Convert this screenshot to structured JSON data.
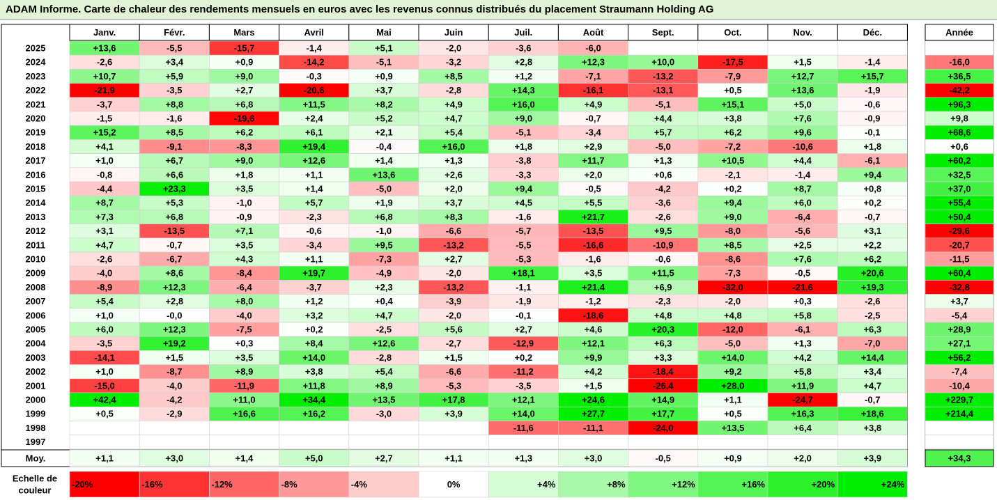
{
  "title": "ADAM Informe. Carte de chaleur des rendements mensuels en euros avec les revenus connus distribués du placement Straumann Holding AG",
  "chart_data": {
    "type": "heatmap",
    "months": [
      "Janv.",
      "Févr.",
      "Mars",
      "Avril",
      "Mai",
      "Juin",
      "Juil.",
      "Août",
      "Sept.",
      "Oct.",
      "Nov.",
      "Déc."
    ],
    "year_header": "Année",
    "rows": [
      {
        "year": "2025",
        "values": [
          "+13,6",
          "-5,5",
          "-15,7",
          "-1,4",
          "+5,1",
          "-2,0",
          "-3,6",
          "-6,0",
          "",
          "",
          "",
          ""
        ],
        "annual": ""
      },
      {
        "year": "2024",
        "values": [
          "-2,6",
          "+3,4",
          "+0,9",
          "-14,2",
          "-5,1",
          "-3,2",
          "+2,8",
          "+12,3",
          "+10,0",
          "-17,5",
          "+1,5",
          "-1,4"
        ],
        "annual": "-16,0"
      },
      {
        "year": "2023",
        "values": [
          "+10,7",
          "+5,9",
          "+9,0",
          "-0,3",
          "+0,9",
          "+8,5",
          "+1,2",
          "-7,1",
          "-13,2",
          "-7,9",
          "+12,7",
          "+15,7"
        ],
        "annual": "+36,5"
      },
      {
        "year": "2022",
        "values": [
          "-21,9",
          "-3,5",
          "+2,7",
          "-20,6",
          "+3,7",
          "-2,8",
          "+14,3",
          "-16,1",
          "-13,1",
          "+0,5",
          "+13,6",
          "-1,9"
        ],
        "annual": "-42,2"
      },
      {
        "year": "2021",
        "values": [
          "-3,7",
          "+8,8",
          "+6,8",
          "+11,5",
          "+8,2",
          "+4,9",
          "+16,0",
          "+4,9",
          "-5,1",
          "+15,1",
          "+5,0",
          "-0,6"
        ],
        "annual": "+96,3"
      },
      {
        "year": "2020",
        "values": [
          "-1,5",
          "-1,6",
          "-19,6",
          "+2,4",
          "+5,2",
          "+4,7",
          "+9,0",
          "-0,7",
          "+4,4",
          "+3,8",
          "+7,6",
          "-0,9"
        ],
        "annual": "+9,8"
      },
      {
        "year": "2019",
        "values": [
          "+15,2",
          "+8,5",
          "+6,2",
          "+6,1",
          "+2,1",
          "+5,4",
          "-5,1",
          "-3,4",
          "+5,7",
          "+6,2",
          "+9,6",
          "-0,1"
        ],
        "annual": "+68,6"
      },
      {
        "year": "2018",
        "values": [
          "+4,1",
          "-9,1",
          "-8,3",
          "+19,4",
          "-0,4",
          "+16,0",
          "+1,8",
          "+2,9",
          "-5,0",
          "-7,2",
          "-10,6",
          "+1,8"
        ],
        "annual": "+0,6"
      },
      {
        "year": "2017",
        "values": [
          "+1,0",
          "+6,7",
          "+9,0",
          "+12,6",
          "+1,4",
          "+1,3",
          "-3,8",
          "+11,7",
          "+1,3",
          "+10,5",
          "+4,4",
          "-6,1"
        ],
        "annual": "+60,2"
      },
      {
        "year": "2016",
        "values": [
          "-0,8",
          "+6,6",
          "+1,8",
          "+1,1",
          "+13,6",
          "+2,6",
          "-3,3",
          "+2,0",
          "+0,6",
          "-2,1",
          "-1,4",
          "+9,4"
        ],
        "annual": "+32,5"
      },
      {
        "year": "2015",
        "values": [
          "-4,4",
          "+23,3",
          "+3,5",
          "+1,4",
          "-5,0",
          "+2,0",
          "+9,4",
          "-0,5",
          "-4,2",
          "+0,2",
          "+8,7",
          "+0,8"
        ],
        "annual": "+37,0"
      },
      {
        "year": "2014",
        "values": [
          "+8,7",
          "+5,3",
          "-1,0",
          "+5,7",
          "+1,9",
          "+3,7",
          "+4,5",
          "+5,5",
          "-3,6",
          "+9,4",
          "+6,0",
          "+0,2"
        ],
        "annual": "+55,4"
      },
      {
        "year": "2013",
        "values": [
          "+7,3",
          "+6,8",
          "-0,9",
          "-2,3",
          "+6,8",
          "+8,3",
          "-1,6",
          "+21,7",
          "-2,6",
          "+9,0",
          "-6,4",
          "-0,7"
        ],
        "annual": "+50,4"
      },
      {
        "year": "2012",
        "values": [
          "+3,1",
          "-13,5",
          "+7,1",
          "-0,6",
          "-1,0",
          "-6,6",
          "-5,7",
          "-13,5",
          "+9,5",
          "-8,0",
          "-5,6",
          "+3,1"
        ],
        "annual": "-29,6"
      },
      {
        "year": "2011",
        "values": [
          "+4,7",
          "-0,7",
          "+3,5",
          "-3,4",
          "+9,5",
          "-13,2",
          "-5,5",
          "-16,6",
          "-10,9",
          "+8,5",
          "+2,5",
          "+2,2"
        ],
        "annual": "-20,7"
      },
      {
        "year": "2010",
        "values": [
          "-2,6",
          "-6,7",
          "+4,3",
          "+1,1",
          "-7,3",
          "+2,7",
          "-5,3",
          "-1,6",
          "-0,6",
          "-8,6",
          "+7,6",
          "+6,2"
        ],
        "annual": "-11,5"
      },
      {
        "year": "2009",
        "values": [
          "-4,0",
          "+8,6",
          "-8,4",
          "+19,7",
          "-4,9",
          "-2,0",
          "+18,1",
          "+3,5",
          "+11,5",
          "-7,3",
          "-0,5",
          "+20,6"
        ],
        "annual": "+60,4"
      },
      {
        "year": "2008",
        "values": [
          "-8,9",
          "+12,3",
          "-6,4",
          "-3,7",
          "+2,3",
          "-13,2",
          "-1,1",
          "+21,4",
          "+6,9",
          "-32,0",
          "-21,6",
          "+19,3"
        ],
        "annual": "-32,8"
      },
      {
        "year": "2007",
        "values": [
          "+5,4",
          "+2,8",
          "+8,0",
          "+1,2",
          "+0,4",
          "-3,9",
          "-1,9",
          "-1,2",
          "-2,3",
          "-2,0",
          "+0,3",
          "-2,6"
        ],
        "annual": "+3,7"
      },
      {
        "year": "2006",
        "values": [
          "+1,0",
          "-0,0",
          "-4,0",
          "+3,2",
          "+4,7",
          "-2,0",
          "-0,1",
          "-18,6",
          "+4,8",
          "+4,8",
          "+5,8",
          "-2,5"
        ],
        "annual": "-5,4"
      },
      {
        "year": "2005",
        "values": [
          "+6,0",
          "+12,3",
          "-7,5",
          "+0,2",
          "-2,5",
          "+5,6",
          "+2,7",
          "+4,6",
          "+20,3",
          "-12,0",
          "-6,1",
          "+6,3"
        ],
        "annual": "+28,9"
      },
      {
        "year": "2004",
        "values": [
          "-3,5",
          "+19,2",
          "+0,3",
          "+8,4",
          "+12,6",
          "-2,7",
          "-12,9",
          "+12,1",
          "+6,3",
          "-5,0",
          "+1,3",
          "-7,0"
        ],
        "annual": "+27,1"
      },
      {
        "year": "2003",
        "values": [
          "-14,1",
          "+1,5",
          "+3,5",
          "+14,0",
          "-2,8",
          "+1,5",
          "+0,2",
          "+9,9",
          "+3,3",
          "+14,0",
          "+4,2",
          "+14,4"
        ],
        "annual": "+56,2"
      },
      {
        "year": "2002",
        "values": [
          "+1,0",
          "-8,7",
          "+8,9",
          "+3,8",
          "+5,4",
          "-6,6",
          "-11,2",
          "+4,2",
          "-18,4",
          "+9,2",
          "+5,8",
          "+3,4"
        ],
        "annual": "-7,4"
      },
      {
        "year": "2001",
        "values": [
          "-15,0",
          "-4,0",
          "-11,9",
          "+11,8",
          "+8,9",
          "-5,3",
          "-3,5",
          "+1,5",
          "-26,4",
          "+28,0",
          "+11,9",
          "+4,7"
        ],
        "annual": "-10,4"
      },
      {
        "year": "2000",
        "values": [
          "+42,4",
          "-4,2",
          "+11,0",
          "+34,4",
          "+13,5",
          "+17,8",
          "+12,1",
          "+24,6",
          "+14,9",
          "+1,1",
          "-24,7",
          "-0,7"
        ],
        "annual": "+229,7"
      },
      {
        "year": "1999",
        "values": [
          "+0,5",
          "-2,9",
          "+16,6",
          "+16,2",
          "-3,0",
          "+3,9",
          "+14,0",
          "+27,7",
          "+17,7",
          "+0,5",
          "+16,3",
          "+18,6"
        ],
        "annual": "+214,4"
      },
      {
        "year": "1998",
        "values": [
          "",
          "",
          "",
          "",
          "",
          "",
          "-11,6",
          "-11,1",
          "-24,0",
          "+13,5",
          "+6,4",
          "+3,8"
        ],
        "annual": ""
      },
      {
        "year": "1997",
        "values": [
          "",
          "",
          "",
          "",
          "",
          "",
          "",
          "",
          "",
          "",
          "",
          ""
        ],
        "annual": ""
      }
    ],
    "average_row": {
      "label": "Moy.",
      "values": [
        "+1,1",
        "+3,0",
        "+1,4",
        "+5,0",
        "+2,7",
        "+1,1",
        "+1,3",
        "+3,0",
        "-0,5",
        "+0,9",
        "+2,0",
        "+3,9"
      ],
      "annual": "+34,3"
    },
    "legend": {
      "label_line1": "Echelle de",
      "label_line2": "couleur",
      "stops": [
        "-20%",
        "-16%",
        "-12%",
        "-8%",
        "-4%",
        "0%",
        "+4%",
        "+8%",
        "+12%",
        "+16%",
        "+20%",
        "+24%"
      ],
      "stop_values": [
        -20,
        -16,
        -12,
        -8,
        -4,
        0,
        4,
        8,
        12,
        16,
        20,
        24
      ]
    },
    "colors": {
      "negative": "#ff0000",
      "positive": "#00ee00",
      "neutral": "#ffffff",
      "title_bg": "#e2f2d4"
    }
  }
}
